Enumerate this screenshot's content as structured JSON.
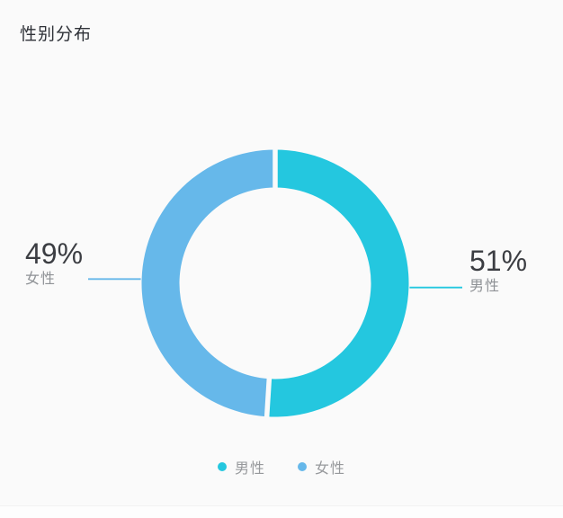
{
  "background": "#fafafa",
  "chart_data": {
    "type": "pie",
    "subtype": "donut",
    "title": "性别分布",
    "legend_position": "bottom",
    "start_angle": "top",
    "direction": "clockwise",
    "total": 100,
    "series": [
      {
        "name": "男性",
        "value": 51,
        "percent_label": "51%",
        "color": "#24c7df"
      },
      {
        "name": "女性",
        "value": 49,
        "percent_label": "49%",
        "color": "#66b8ea"
      }
    ],
    "legend": [
      "男性",
      "女性"
    ]
  }
}
